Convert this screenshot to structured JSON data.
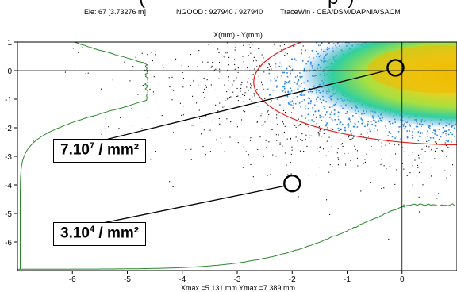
{
  "header": {
    "title_fragment": "(",
    "title_fragment_right": "p",
    "title_fragment_right2": ")",
    "element_info": "Ele: 67 [3.73276 m]",
    "ngood": "NGOOD : 927940 / 927940",
    "software": "TraceWin - CEA/DSM/DAPNIA/SACM"
  },
  "chart_data": {
    "type": "scatter",
    "title": "X(mm) - Y(mm)",
    "footer": "Xmax =5.131 mm  Ymax =7.389 mm",
    "xlim": [
      -7.0,
      1.0
    ],
    "ylim": [
      -7.0,
      1.0
    ],
    "x_ticks": [
      -6,
      -5,
      -4,
      -3,
      -2,
      -1,
      0
    ],
    "y_ticks": [
      1,
      0,
      -1,
      -2,
      -3,
      -4,
      -5,
      -6
    ],
    "grid": false,
    "crosshair": {
      "x": 0,
      "y": 0
    },
    "colors": {
      "core_high": "#e0c000",
      "core_mid": "#9fe040",
      "halo_inner": "#2a86e8",
      "halo_outer": "#000000",
      "ellipse": "#e02020",
      "profile": "#2a8a2a"
    },
    "ellipse": {
      "cx": 1.1,
      "cy": -0.4,
      "rx": 3.8,
      "ry": 2.2
    },
    "profile_y_min_x": -4.65,
    "profile_x_min_y": -4.7,
    "annotations": [
      {
        "label": "7.10",
        "exponent": "7",
        "unit": " / mm²",
        "marker": {
          "x": -0.12,
          "y": 0.1
        }
      },
      {
        "label": "3.10",
        "exponent": "4",
        "unit": " / mm²",
        "marker": {
          "x": -2.0,
          "y": -3.95
        }
      }
    ]
  }
}
